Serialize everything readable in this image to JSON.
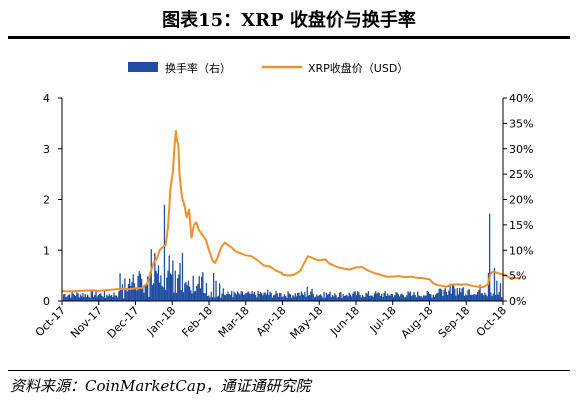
{
  "title": "图表15：XRP 收盘价与换手率",
  "source": "资料来源：CoinMarketCap，通证通研究院",
  "chart_data": {
    "type": "bar+line",
    "series": [
      {
        "name": "换手率（右）",
        "kind": "bar",
        "axis": "right",
        "color": "#1f4fa3"
      },
      {
        "name": "XRP收盘价（USD）",
        "kind": "line",
        "axis": "left",
        "color": "#f0902a"
      }
    ],
    "left_axis": {
      "ylim": [
        0,
        4
      ],
      "ticks": [
        "0",
        "1",
        "2",
        "3",
        "4"
      ]
    },
    "right_axis": {
      "ylim": [
        0,
        40
      ],
      "ticks": [
        "0%",
        "5%",
        "10%",
        "15%",
        "20%",
        "25%",
        "30%",
        "35%",
        "40%"
      ]
    },
    "x_ticks": [
      "Oct-17",
      "Nov-17",
      "Dec-17",
      "Jan-18",
      "Feb-18",
      "Mar-18",
      "Apr-18",
      "May-18",
      "Jun-18",
      "Jul-18",
      "Aug-18",
      "Sep-18",
      "Oct-18"
    ],
    "price_points": [
      [
        "Oct-17",
        0.2
      ],
      [
        "Oct-17+5",
        0.19
      ],
      [
        "Oct-17+15",
        0.2
      ],
      [
        "Oct-17+25",
        0.21
      ],
      [
        "Nov-17",
        0.2
      ],
      [
        "Nov-17+10",
        0.22
      ],
      [
        "Nov-17+20",
        0.24
      ],
      [
        "Nov-17+25",
        0.23
      ],
      [
        "Dec-17",
        0.25
      ],
      [
        "Dec-17+5",
        0.25
      ],
      [
        "Dec-17+10",
        0.35
      ],
      [
        "Dec-17+13",
        0.6
      ],
      [
        "Dec-17+15",
        0.75
      ],
      [
        "Dec-17+18",
        0.85
      ],
      [
        "Dec-17+20",
        1.0
      ],
      [
        "Dec-17+22",
        1.05
      ],
      [
        "Dec-17+25",
        1.1
      ],
      [
        "Dec-17+27",
        1.45
      ],
      [
        "Dec-17+29",
        2.2
      ],
      [
        "Dec-17+31",
        2.55
      ],
      [
        "Jan-18+2",
        3.1
      ],
      [
        "Jan-18+3",
        3.35
      ],
      [
        "Jan-18+4",
        3.15
      ],
      [
        "Jan-18+5",
        3.1
      ],
      [
        "Jan-18+6",
        2.5
      ],
      [
        "Jan-18+8",
        2.05
      ],
      [
        "Jan-18+10",
        1.9
      ],
      [
        "Jan-18+12",
        1.65
      ],
      [
        "Jan-18+14",
        1.8
      ],
      [
        "Jan-18+16",
        1.25
      ],
      [
        "Jan-18+18",
        1.5
      ],
      [
        "Jan-18+20",
        1.55
      ],
      [
        "Jan-18+22",
        1.4
      ],
      [
        "Jan-18+25",
        1.3
      ],
      [
        "Jan-18+28",
        1.2
      ],
      [
        "Feb-18",
        1.0
      ],
      [
        "Feb-18+3",
        0.8
      ],
      [
        "Feb-18+5",
        0.75
      ],
      [
        "Feb-18+7",
        0.85
      ],
      [
        "Feb-18+10",
        1.05
      ],
      [
        "Feb-18+13",
        1.15
      ],
      [
        "Feb-18+16",
        1.1
      ],
      [
        "Feb-18+19",
        1.05
      ],
      [
        "Feb-18+22",
        0.98
      ],
      [
        "Feb-18+25",
        0.95
      ],
      [
        "Mar-18",
        0.9
      ],
      [
        "Mar-18+5",
        0.88
      ],
      [
        "Mar-18+10",
        0.8
      ],
      [
        "Mar-18+15",
        0.7
      ],
      [
        "Mar-18+20",
        0.68
      ],
      [
        "Mar-18+25",
        0.6
      ],
      [
        "Mar-18+30",
        0.55
      ],
      [
        "Apr-18",
        0.52
      ],
      [
        "Apr-18+5",
        0.5
      ],
      [
        "Apr-18+10",
        0.52
      ],
      [
        "Apr-18+15",
        0.6
      ],
      [
        "Apr-18+18",
        0.75
      ],
      [
        "Apr-18+21",
        0.88
      ],
      [
        "Apr-18+24",
        0.86
      ],
      [
        "Apr-18+27",
        0.82
      ],
      [
        "May-18",
        0.8
      ],
      [
        "May-18+5",
        0.82
      ],
      [
        "May-18+8",
        0.74
      ],
      [
        "May-18+12",
        0.7
      ],
      [
        "May-18+16",
        0.66
      ],
      [
        "May-18+20",
        0.64
      ],
      [
        "May-18+25",
        0.62
      ],
      [
        "Jun-18",
        0.66
      ],
      [
        "Jun-18+5",
        0.67
      ],
      [
        "Jun-18+10",
        0.6
      ],
      [
        "Jun-18+15",
        0.55
      ],
      [
        "Jun-18+20",
        0.52
      ],
      [
        "Jun-18+25",
        0.48
      ],
      [
        "Jul-18",
        0.48
      ],
      [
        "Jul-18+5",
        0.49
      ],
      [
        "Jul-18+10",
        0.47
      ],
      [
        "Jul-18+15",
        0.48
      ],
      [
        "Jul-18+20",
        0.46
      ],
      [
        "Jul-18+25",
        0.45
      ],
      [
        "Aug-18",
        0.43
      ],
      [
        "Aug-18+3",
        0.35
      ],
      [
        "Aug-18+6",
        0.32
      ],
      [
        "Aug-18+10",
        0.3
      ],
      [
        "Aug-18+14",
        0.28
      ],
      [
        "Aug-18+18",
        0.32
      ],
      [
        "Aug-18+22",
        0.33
      ],
      [
        "Aug-18+26",
        0.32
      ],
      [
        "Sep-18",
        0.33
      ],
      [
        "Sep-18+5",
        0.3
      ],
      [
        "Sep-18+10",
        0.28
      ],
      [
        "Sep-18+14",
        0.27
      ],
      [
        "Sep-18+18",
        0.33
      ],
      [
        "Sep-18+20",
        0.52
      ],
      [
        "Sep-18+21",
        0.56
      ],
      [
        "Sep-18+23",
        0.58
      ],
      [
        "Sep-18+26",
        0.55
      ],
      [
        "Oct-18",
        0.52
      ],
      [
        "Oct-18+3",
        0.5
      ],
      [
        "Oct-18+6",
        0.45
      ],
      [
        "Oct-18+9",
        0.46
      ],
      [
        "Oct-18+12",
        0.45
      ],
      [
        "Oct-18+15",
        0.46
      ]
    ],
    "turnover_peaks": [
      [
        "Oct-17+20",
        0.8
      ],
      [
        "Nov-17+5",
        0.6
      ],
      [
        "Nov-17+10",
        1.2
      ],
      [
        "Nov-17+20",
        0.5
      ],
      [
        "Dec-17+5",
        2.5
      ],
      [
        "Dec-17+10",
        0.8
      ],
      [
        "Dec-17+13",
        10.2
      ],
      [
        "Dec-17+15",
        9.5
      ],
      [
        "Dec-17+17",
        12.5
      ],
      [
        "Dec-17+19",
        7.0
      ],
      [
        "Dec-17+21",
        3.0
      ],
      [
        "Dec-17+24",
        19.0
      ],
      [
        "Dec-17+26",
        6.0
      ],
      [
        "Dec-17+28",
        9.0
      ],
      [
        "Dec-17+30",
        8.0
      ],
      [
        "Jan-18+2",
        6.0
      ],
      [
        "Jan-18+4",
        4.5
      ],
      [
        "Jan-18+6",
        7.5
      ],
      [
        "Jan-18+8",
        9.5
      ],
      [
        "Jan-18+10",
        3.5
      ],
      [
        "Jan-18+13",
        4.0
      ],
      [
        "Jan-18+16",
        8.5
      ],
      [
        "Jan-18+17",
        5.0
      ],
      [
        "Jan-18+20",
        3.0
      ],
      [
        "Jan-18+23",
        2.5
      ],
      [
        "Jan-18+28",
        3.5
      ],
      [
        "Feb-18+3",
        5.5
      ],
      [
        "Feb-18+5",
        4.0
      ],
      [
        "Feb-18+8",
        3.5
      ],
      [
        "Feb-18+12",
        2.5
      ],
      [
        "Feb-18+18",
        2.0
      ],
      [
        "Mar-18+3",
        1.5
      ],
      [
        "Mar-18+12",
        1.8
      ],
      [
        "Mar-18+18",
        2.2
      ],
      [
        "Mar-18+28",
        1.6
      ],
      [
        "Apr-18+5",
        1.5
      ],
      [
        "Apr-18+12",
        1.6
      ],
      [
        "Apr-18+20",
        2.8
      ],
      [
        "Apr-18+24",
        2.4
      ],
      [
        "May-18+3",
        1.8
      ],
      [
        "May-18+12",
        1.5
      ],
      [
        "May-18+22",
        1.2
      ],
      [
        "Jun-18+5",
        1.2
      ],
      [
        "Jun-18+15",
        1.5
      ],
      [
        "Jun-18+25",
        1.0
      ],
      [
        "Jul-18+5",
        0.9
      ],
      [
        "Jul-18+15",
        1.0
      ],
      [
        "Jul-18+25",
        1.1
      ],
      [
        "Aug-18+5",
        1.5
      ],
      [
        "Aug-18+14",
        1.8
      ],
      [
        "Aug-18+24",
        1.3
      ],
      [
        "Sep-18+5",
        1.2
      ],
      [
        "Sep-18+12",
        1.5
      ],
      [
        "Sep-18+18",
        5.5
      ],
      [
        "Sep-18+19",
        17.2
      ],
      [
        "Sep-18+21",
        9.5
      ],
      [
        "Sep-18+23",
        6.5
      ],
      [
        "Sep-18+25",
        4.0
      ],
      [
        "Sep-18+28",
        3.5
      ],
      [
        "Oct-18+3",
        3.0
      ],
      [
        "Oct-18+7",
        2.5
      ],
      [
        "Oct-18+10",
        6.5
      ],
      [
        "Oct-18+13",
        3.0
      ]
    ]
  }
}
